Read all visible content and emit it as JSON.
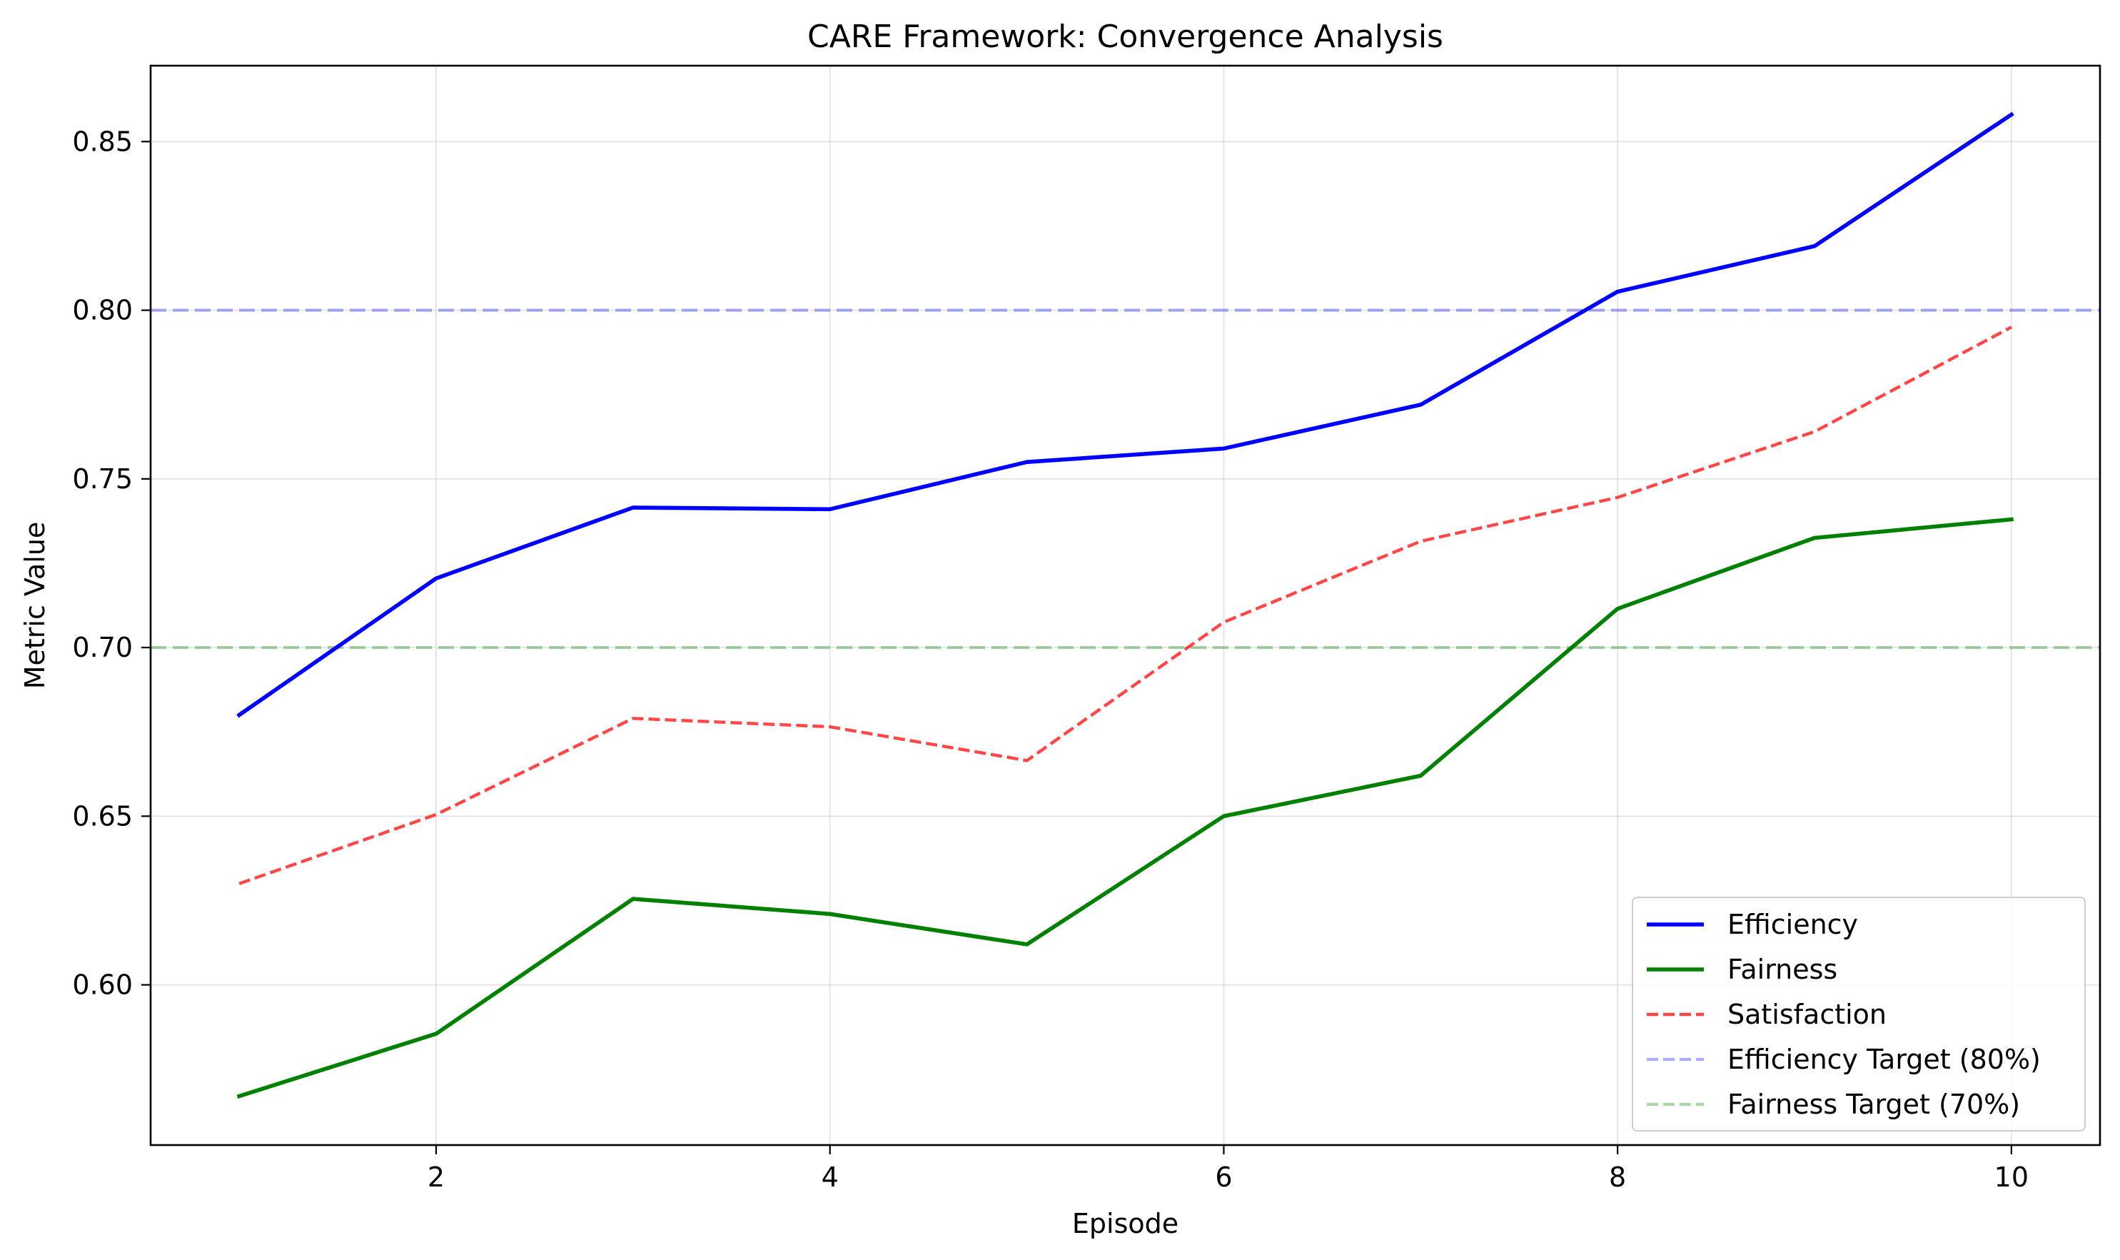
{
  "chart_data": {
    "type": "line",
    "title": "CARE Framework: Convergence Analysis",
    "xlabel": "Episode",
    "ylabel": "Metric Value",
    "x": [
      1,
      2,
      3,
      4,
      5,
      6,
      7,
      8,
      9,
      10
    ],
    "xlim": [
      0.55,
      10.45
    ],
    "ylim": [
      0.5525,
      0.8725
    ],
    "x_ticks": [
      2,
      4,
      6,
      8,
      10
    ],
    "x_tick_labels": [
      "2",
      "4",
      "6",
      "8",
      "10"
    ],
    "y_ticks": [
      0.6,
      0.65,
      0.7,
      0.75,
      0.8,
      0.85
    ],
    "y_tick_labels": [
      "0.60",
      "0.65",
      "0.70",
      "0.75",
      "0.80",
      "0.85"
    ],
    "grid": true,
    "legend_position": "bottom-right",
    "series": [
      {
        "name": "Efficiency",
        "color": "#0000ff",
        "style": "solid",
        "values": [
          0.68,
          0.7205,
          0.7415,
          0.741,
          0.755,
          0.759,
          0.772,
          0.8055,
          0.819,
          0.858
        ]
      },
      {
        "name": "Fairness",
        "color": "#008000",
        "style": "solid",
        "values": [
          0.567,
          0.5855,
          0.6255,
          0.621,
          0.612,
          0.65,
          0.662,
          0.7115,
          0.7325,
          0.738
        ]
      },
      {
        "name": "Satisfaction",
        "color": "#ff0000",
        "style": "dashed",
        "values": [
          0.63,
          0.6505,
          0.679,
          0.6765,
          0.6665,
          0.7075,
          0.7315,
          0.7445,
          0.764,
          0.795
        ]
      }
    ],
    "reference_lines": [
      {
        "name": "Efficiency Target (80%)",
        "color": "#0000ff",
        "style": "dashed",
        "y": 0.8
      },
      {
        "name": "Fairness Target (70%)",
        "color": "#008000",
        "style": "dashed",
        "y": 0.7
      }
    ]
  }
}
